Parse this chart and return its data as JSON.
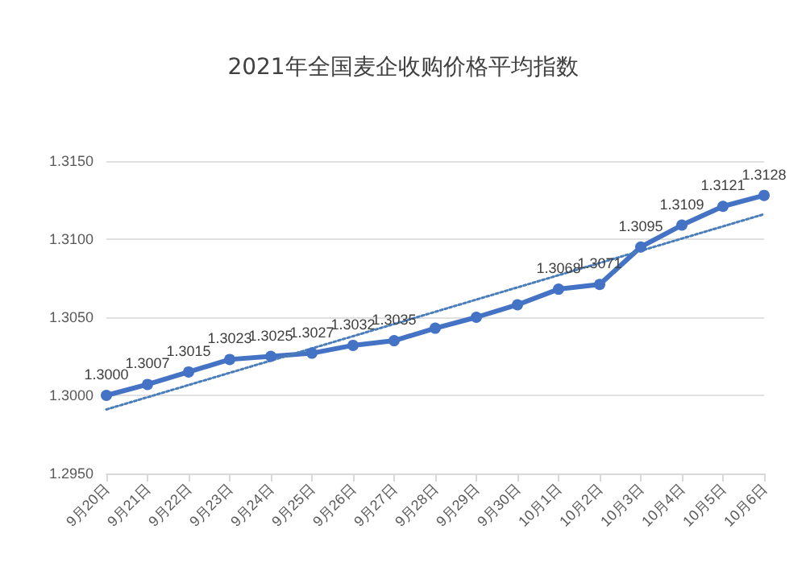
{
  "chart_data": {
    "type": "line",
    "title": "2021年全国麦企收购价格平均指数",
    "categories": [
      "9月20日",
      "9月21日",
      "9月22日",
      "9月23日",
      "9月24日",
      "9月25日",
      "9月26日",
      "9月27日",
      "9月28日",
      "9月29日",
      "9月30日",
      "10月1日",
      "10月2日",
      "10月3日",
      "10月4日",
      "10月5日",
      "10月6日"
    ],
    "series": [
      {
        "color": "#4472c4",
        "marker": "circle",
        "line_style": "solid",
        "values": [
          1.3,
          1.3007,
          1.3015,
          1.3023,
          1.3025,
          1.3027,
          1.3032,
          1.3035,
          1.3043,
          1.305,
          1.3058,
          1.3068,
          1.3071,
          1.3095,
          1.3109,
          1.3121,
          1.3128
        ],
        "value_labels": [
          "1.3000",
          "1.3007",
          "1.3015",
          "1.3023",
          "1.3025",
          "1.3027",
          "1.3032",
          "1.3035",
          null,
          null,
          null,
          "1.3068",
          "1.3071",
          "1.3095",
          "1.3109",
          "1.3121",
          "1.3128"
        ]
      },
      {
        "type": "line",
        "color": "#4a7ebb",
        "marker": "none",
        "line_style": "dotted",
        "values": [
          1.2991,
          null,
          null,
          null,
          null,
          null,
          null,
          null,
          null,
          null,
          null,
          null,
          null,
          null,
          null,
          null,
          1.3116
        ]
      }
    ],
    "ylim": [
      1.295,
      1.315
    ],
    "yticks": [
      {
        "value": 1.295,
        "label": "1.2950"
      },
      {
        "value": 1.3,
        "label": "1.3000"
      },
      {
        "value": 1.305,
        "label": "1.3050"
      },
      {
        "value": 1.31,
        "label": "1.3100"
      },
      {
        "value": 1.315,
        "label": "1.3150"
      }
    ],
    "grid": "y"
  }
}
